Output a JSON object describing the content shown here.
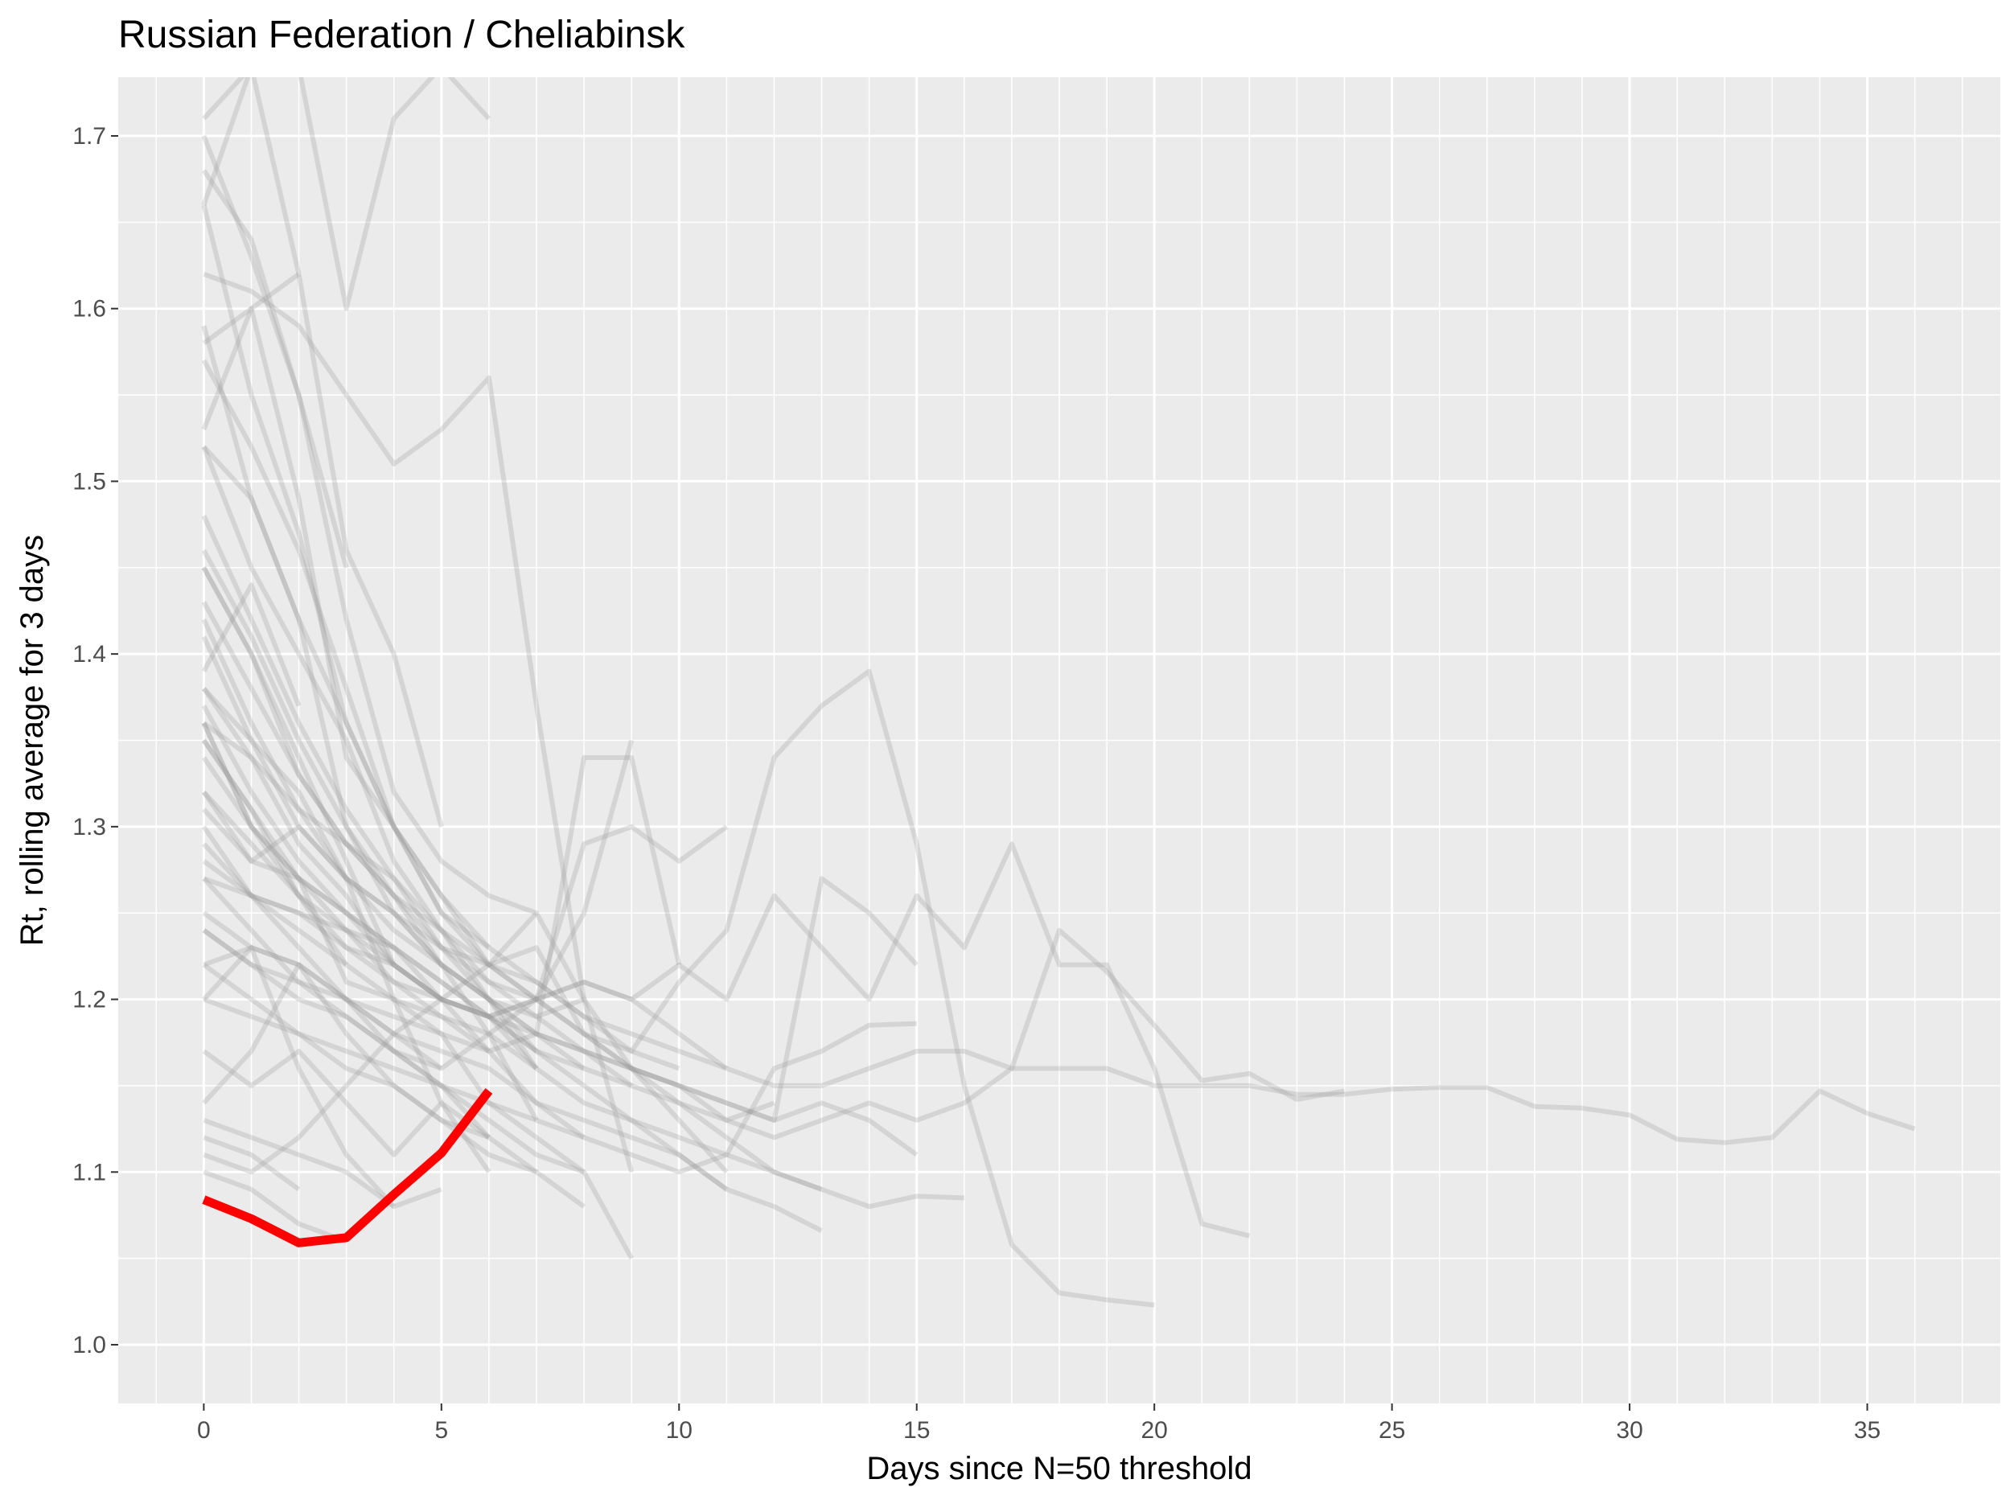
{
  "chart_data": {
    "type": "line",
    "title": "Russian Federation / Cheliabinsk",
    "xlabel": "Days since N=50 threshold",
    "ylabel": "Rt, rolling average for 3 days",
    "xlim": [
      -1.8,
      37.8
    ],
    "ylim": [
      0.966,
      1.734
    ],
    "x_ticks": [
      0,
      5,
      10,
      15,
      20,
      25,
      30,
      35
    ],
    "x_tick_labels": [
      "0",
      "5",
      "10",
      "15",
      "20",
      "25",
      "30",
      "35"
    ],
    "y_ticks": [
      1.0,
      1.1,
      1.2,
      1.3,
      1.4,
      1.5,
      1.6,
      1.7
    ],
    "y_tick_labels": [
      "1.0",
      "1.1",
      "1.2",
      "1.3",
      "1.4",
      "1.5",
      "1.6",
      "1.7"
    ],
    "grid": true,
    "legend": "none",
    "colors": {
      "panel": "#EBEBEB",
      "grid": "#FFFFFF",
      "background_series": "#999999",
      "highlight": "#FF0000"
    },
    "highlight_series": {
      "name": "Cheliabinsk",
      "x": [
        0,
        1,
        2,
        3,
        4,
        5,
        6
      ],
      "y": [
        1.084,
        1.073,
        1.059,
        1.062,
        1.087,
        1.111,
        1.147
      ]
    },
    "background_series": [
      {
        "x": [
          0,
          1,
          2,
          3,
          4,
          5,
          6,
          7,
          8,
          9,
          10,
          11,
          12,
          13,
          14,
          15,
          16,
          17,
          18,
          19,
          20,
          21,
          22,
          23,
          24,
          25,
          26,
          27,
          28,
          29,
          30,
          31,
          32,
          33,
          34,
          35,
          36
        ],
        "y": [
          1.42,
          1.36,
          1.31,
          1.27,
          1.25,
          1.23,
          1.22,
          1.21,
          1.19,
          1.18,
          1.17,
          1.16,
          1.15,
          1.15,
          1.16,
          1.17,
          1.17,
          1.16,
          1.16,
          1.16,
          1.15,
          1.15,
          1.15,
          1.145,
          1.145,
          1.148,
          1.149,
          1.149,
          1.138,
          1.137,
          1.133,
          1.119,
          1.117,
          1.12,
          1.147,
          1.134,
          1.125
        ]
      },
      {
        "x": [
          0,
          1,
          2,
          3,
          4,
          5,
          6,
          7,
          8,
          9,
          10,
          11,
          12,
          13,
          14,
          15,
          16,
          17,
          18,
          19,
          20,
          21,
          22
        ],
        "y": [
          1.32,
          1.29,
          1.26,
          1.24,
          1.22,
          1.2,
          1.19,
          1.2,
          1.21,
          1.2,
          1.22,
          1.2,
          1.26,
          1.23,
          1.2,
          1.26,
          1.23,
          1.29,
          1.22,
          1.22,
          1.16,
          1.07,
          1.063
        ]
      },
      {
        "x": [
          0,
          1,
          2,
          3,
          4,
          5,
          6,
          7,
          8,
          9,
          10,
          11,
          12,
          13,
          14,
          15,
          16,
          17,
          18,
          19,
          20
        ],
        "y": [
          1.36,
          1.3,
          1.27,
          1.25,
          1.22,
          1.2,
          1.22,
          1.23,
          1.18,
          1.17,
          1.21,
          1.24,
          1.34,
          1.37,
          1.39,
          1.29,
          1.15,
          1.058,
          1.03,
          1.026,
          1.023
        ]
      },
      {
        "x": [
          0,
          1,
          2,
          3,
          4,
          5,
          6,
          7,
          8,
          9,
          10,
          11,
          12,
          13,
          14,
          15,
          16,
          17,
          18,
          19,
          20,
          21,
          22,
          23,
          24
        ],
        "y": [
          1.25,
          1.23,
          1.22,
          1.2,
          1.19,
          1.18,
          1.17,
          1.18,
          1.16,
          1.15,
          1.14,
          1.13,
          1.12,
          1.13,
          1.14,
          1.13,
          1.14,
          1.16,
          1.24,
          1.216,
          1.185,
          1.153,
          1.157,
          1.142,
          1.147
        ]
      },
      {
        "x": [
          0,
          1,
          2,
          3,
          4,
          5,
          6,
          7,
          8,
          9,
          10,
          11,
          12,
          13,
          14,
          15,
          16
        ],
        "y": [
          1.3,
          1.26,
          1.24,
          1.22,
          1.2,
          1.19,
          1.18,
          1.16,
          1.14,
          1.13,
          1.12,
          1.11,
          1.1,
          1.09,
          1.08,
          1.086,
          1.085
        ]
      },
      {
        "x": [
          0,
          1,
          2,
          3,
          4,
          5,
          6,
          7,
          8,
          9,
          10,
          11,
          12,
          13,
          14,
          15
        ],
        "y": [
          1.45,
          1.4,
          1.33,
          1.29,
          1.26,
          1.24,
          1.22,
          1.2,
          1.18,
          1.16,
          1.15,
          1.14,
          1.13,
          1.27,
          1.25,
          1.22
        ]
      },
      {
        "x": [
          0,
          1,
          2,
          3,
          4,
          5,
          6,
          7,
          8,
          9,
          10,
          11,
          12,
          13,
          14,
          15
        ],
        "y": [
          1.38,
          1.35,
          1.3,
          1.27,
          1.25,
          1.22,
          1.2,
          1.18,
          1.17,
          1.16,
          1.15,
          1.14,
          1.13,
          1.14,
          1.13,
          1.11
        ]
      },
      {
        "x": [
          0,
          1,
          2,
          3,
          4,
          5,
          6,
          7,
          8,
          9,
          10,
          11,
          12,
          13,
          14,
          15
        ],
        "y": [
          1.22,
          1.2,
          1.18,
          1.17,
          1.16,
          1.15,
          1.14,
          1.13,
          1.12,
          1.11,
          1.1,
          1.11,
          1.16,
          1.17,
          1.185,
          1.186
        ]
      },
      {
        "x": [
          0,
          1,
          2,
          3,
          4,
          5,
          6,
          7,
          8,
          9,
          10,
          11,
          12,
          13
        ],
        "y": [
          1.66,
          1.55,
          1.47,
          1.36,
          1.3,
          1.25,
          1.22,
          1.2,
          1.18,
          1.16,
          1.14,
          1.12,
          1.1,
          1.09
        ]
      },
      {
        "x": [
          0,
          1,
          2,
          3,
          4,
          5,
          6,
          7,
          8,
          9,
          10,
          11,
          12,
          13
        ],
        "y": [
          1.27,
          1.26,
          1.25,
          1.24,
          1.23,
          1.21,
          1.19,
          1.17,
          1.15,
          1.13,
          1.11,
          1.09,
          1.08,
          1.066
        ]
      },
      {
        "x": [
          0,
          1,
          2,
          3,
          4,
          5,
          6,
          7,
          8,
          9,
          10,
          11,
          12
        ],
        "y": [
          1.28,
          1.26,
          1.25,
          1.23,
          1.22,
          1.2,
          1.19,
          1.18,
          1.17,
          1.16,
          1.15,
          1.13,
          1.14
        ]
      },
      {
        "x": [
          0,
          1,
          2,
          3,
          4,
          5,
          6,
          7,
          8,
          9,
          10,
          11
        ],
        "y": [
          1.24,
          1.22,
          1.21,
          1.2,
          1.18,
          1.17,
          1.16,
          1.14,
          1.13,
          1.12,
          1.11,
          1.09
        ]
      },
      {
        "x": [
          0,
          1,
          2,
          3,
          4,
          5,
          6,
          7,
          8,
          9,
          10,
          11
        ],
        "y": [
          1.7,
          1.63,
          1.55,
          1.42,
          1.32,
          1.28,
          1.26,
          1.25,
          1.2,
          1.16,
          1.13,
          1.1
        ]
      },
      {
        "x": [
          0,
          1,
          2,
          3,
          4,
          5,
          6,
          7,
          8,
          9,
          10,
          11
        ],
        "y": [
          1.36,
          1.34,
          1.31,
          1.29,
          1.27,
          1.23,
          1.21,
          1.2,
          1.21,
          1.2,
          1.18,
          1.16
        ]
      },
      {
        "x": [
          0,
          1,
          2,
          3,
          4,
          5,
          6,
          7,
          8,
          9,
          10,
          11
        ],
        "y": [
          1.36,
          1.3,
          1.26,
          1.23,
          1.21,
          1.2,
          1.19,
          1.2,
          1.29,
          1.3,
          1.28,
          1.3
        ]
      },
      {
        "x": [
          0,
          1,
          2,
          3,
          4,
          5,
          6,
          7,
          8,
          9,
          10
        ],
        "y": [
          1.59,
          1.49,
          1.42,
          1.36,
          1.3,
          1.26,
          1.23,
          1.21,
          1.19,
          1.17,
          1.16
        ]
      },
      {
        "x": [
          0,
          1,
          2,
          3,
          4,
          5,
          6,
          7,
          8,
          9,
          10
        ],
        "y": [
          1.43,
          1.38,
          1.33,
          1.29,
          1.26,
          1.23,
          1.2,
          1.18,
          1.34,
          1.34,
          1.22
        ]
      },
      {
        "x": [
          0,
          1,
          2,
          3,
          4,
          5,
          6,
          7,
          8,
          9
        ],
        "y": [
          1.48,
          1.42,
          1.36,
          1.31,
          1.27,
          1.24,
          1.21,
          1.19,
          1.17,
          1.15
        ]
      },
      {
        "x": [
          0,
          1,
          2,
          3,
          4,
          5,
          6,
          7,
          8,
          9
        ],
        "y": [
          1.14,
          1.17,
          1.22,
          1.2,
          1.17,
          1.16,
          1.18,
          1.2,
          1.25,
          1.35
        ]
      },
      {
        "x": [
          0,
          1,
          2,
          3,
          4,
          5,
          6,
          7,
          8,
          9
        ],
        "y": [
          1.62,
          1.61,
          1.59,
          1.55,
          1.51,
          1.53,
          1.56,
          1.37,
          1.2,
          1.1
        ]
      },
      {
        "x": [
          0,
          1,
          2,
          3,
          4,
          5,
          6,
          7,
          8,
          9
        ],
        "y": [
          1.31,
          1.28,
          1.3,
          1.27,
          1.2,
          1.18,
          1.14,
          1.12,
          1.1,
          1.05
        ]
      },
      {
        "x": [
          0,
          1,
          2,
          3,
          4,
          5,
          6,
          7,
          8
        ],
        "y": [
          1.27,
          1.24,
          1.21,
          1.19,
          1.17,
          1.15,
          1.13,
          1.11,
          1.1
        ]
      },
      {
        "x": [
          0,
          1,
          2,
          3,
          4,
          5,
          6,
          7,
          8
        ],
        "y": [
          1.34,
          1.3,
          1.27,
          1.25,
          1.23,
          1.2,
          1.17,
          1.14,
          1.12
        ]
      },
      {
        "x": [
          0,
          1,
          2,
          3,
          4,
          5,
          6,
          7,
          8
        ],
        "y": [
          1.2,
          1.19,
          1.18,
          1.16,
          1.15,
          1.13,
          1.11,
          1.1,
          1.08
        ]
      },
      {
        "x": [
          0,
          1,
          2,
          3,
          4,
          5,
          6,
          7,
          8
        ],
        "y": [
          1.52,
          1.45,
          1.4,
          1.35,
          1.28,
          1.24,
          1.2,
          1.17,
          1.16
        ]
      },
      {
        "x": [
          0,
          1,
          2,
          3,
          4,
          5,
          6,
          7,
          8
        ],
        "y": [
          1.46,
          1.41,
          1.35,
          1.3,
          1.26,
          1.22,
          1.2,
          1.19,
          1.2
        ]
      },
      {
        "x": [
          0,
          1,
          2,
          3,
          4,
          5,
          6,
          7
        ],
        "y": [
          1.37,
          1.32,
          1.28,
          1.25,
          1.23,
          1.21,
          1.19,
          1.17
        ]
      },
      {
        "x": [
          0,
          1,
          2,
          3,
          4,
          5,
          6,
          7
        ],
        "y": [
          1.11,
          1.1,
          1.12,
          1.15,
          1.18,
          1.2,
          1.19,
          1.16
        ]
      },
      {
        "x": [
          0,
          1,
          2,
          3,
          4,
          5,
          6,
          7
        ],
        "y": [
          1.52,
          1.49,
          1.42,
          1.3,
          1.25,
          1.22,
          1.2,
          1.16
        ]
      },
      {
        "x": [
          0,
          1,
          2,
          3,
          4,
          5,
          6,
          7
        ],
        "y": [
          1.2,
          1.23,
          1.22,
          1.18,
          1.15,
          1.13,
          1.12,
          1.1
        ]
      },
      {
        "x": [
          0,
          1,
          2,
          3,
          4,
          5,
          6,
          7
        ],
        "y": [
          1.58,
          1.6,
          1.49,
          1.34,
          1.3,
          1.26,
          1.22,
          1.25
        ]
      },
      {
        "x": [
          0,
          1,
          2,
          3,
          4,
          5,
          6,
          7
        ],
        "y": [
          1.41,
          1.35,
          1.32,
          1.27,
          1.24,
          1.22,
          1.18,
          1.13
        ]
      },
      {
        "x": [
          0,
          1,
          2,
          3,
          4,
          5,
          6
        ],
        "y": [
          1.24,
          1.22,
          1.2,
          1.19,
          1.17,
          1.15,
          1.12
        ]
      },
      {
        "x": [
          0,
          1,
          2,
          3,
          4,
          5,
          6
        ],
        "y": [
          1.35,
          1.31,
          1.27,
          1.24,
          1.21,
          1.19,
          1.17
        ]
      },
      {
        "x": [
          0,
          1,
          2,
          3,
          4,
          5,
          6
        ],
        "y": [
          1.32,
          1.28,
          1.27,
          1.21,
          1.2,
          1.14,
          1.1
        ]
      },
      {
        "x": [
          0,
          1,
          2,
          3,
          4,
          5,
          6
        ],
        "y": [
          1.17,
          1.15,
          1.17,
          1.14,
          1.11,
          1.14,
          1.12
        ]
      },
      {
        "x": [
          0,
          1,
          2,
          3,
          4,
          5,
          6
        ],
        "y": [
          1.71,
          1.74,
          1.74,
          1.6,
          1.71,
          1.74,
          1.71
        ]
      },
      {
        "x": [
          0,
          1,
          2,
          3,
          4,
          5,
          6
        ],
        "y": [
          1.57,
          1.52,
          1.46,
          1.38,
          1.3,
          1.25,
          1.23
        ]
      },
      {
        "x": [
          0,
          1,
          2,
          3,
          4,
          5
        ],
        "y": [
          1.13,
          1.12,
          1.11,
          1.1,
          1.08,
          1.09
        ]
      },
      {
        "x": [
          0,
          1,
          2,
          3,
          4,
          5
        ],
        "y": [
          1.38,
          1.34,
          1.29,
          1.26,
          1.22,
          1.2
        ]
      },
      {
        "x": [
          0,
          1,
          2,
          3,
          4,
          5
        ],
        "y": [
          1.66,
          1.74,
          1.62,
          1.46,
          1.4,
          1.3
        ]
      },
      {
        "x": [
          0,
          1,
          2,
          3,
          4,
          5
        ],
        "y": [
          1.29,
          1.26,
          1.23,
          1.2,
          1.18,
          1.16
        ]
      },
      {
        "x": [
          0,
          1,
          2,
          3,
          4
        ],
        "y": [
          1.45,
          1.4,
          1.34,
          1.28,
          1.22
        ]
      },
      {
        "x": [
          0,
          1,
          2,
          3,
          4
        ],
        "y": [
          1.22,
          1.23,
          1.16,
          1.11,
          1.08
        ]
      },
      {
        "x": [
          0,
          1,
          2,
          3
        ],
        "y": [
          1.35,
          1.31,
          1.26,
          1.22
        ]
      },
      {
        "x": [
          0,
          1,
          2,
          3
        ],
        "y": [
          1.68,
          1.64,
          1.55,
          1.45
        ]
      },
      {
        "x": [
          0,
          1,
          2,
          3
        ],
        "y": [
          1.1,
          1.09,
          1.07,
          1.06
        ]
      },
      {
        "x": [
          0,
          1,
          2
        ],
        "y": [
          1.53,
          1.6,
          1.62
        ]
      },
      {
        "x": [
          0,
          1,
          2
        ],
        "y": [
          1.39,
          1.44,
          1.37
        ]
      },
      {
        "x": [
          0,
          1,
          2
        ],
        "y": [
          1.12,
          1.11,
          1.09
        ]
      }
    ]
  }
}
